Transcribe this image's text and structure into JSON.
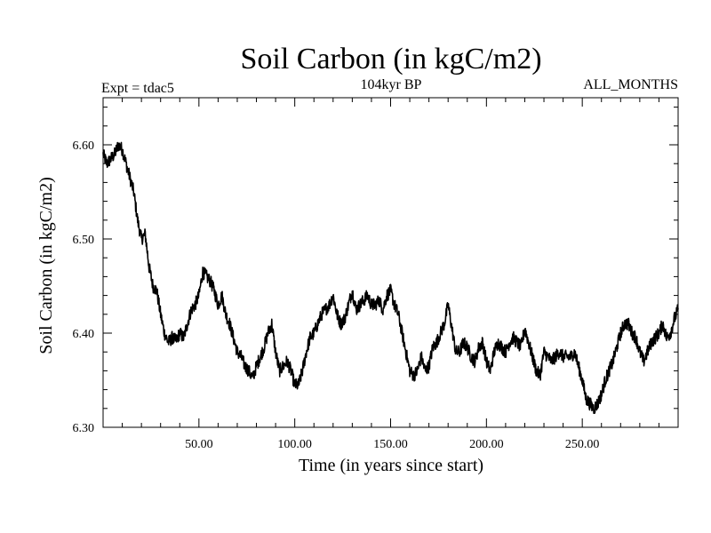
{
  "chart_data": {
    "type": "line",
    "title": "Soil Carbon (in kgC/m2)",
    "subtitle_left": "Expt = tdac5",
    "subtitle_center": "104kyr BP",
    "subtitle_right": "ALL_MONTHS",
    "xlabel": "Time (in years since start)",
    "ylabel": "Soil Carbon (in kgC/m2)",
    "xlim": [
      0,
      300
    ],
    "ylim": [
      6.3,
      6.65
    ],
    "x_ticks": [
      {
        "value": 50,
        "label": "50.00"
      },
      {
        "value": 100,
        "label": "100.00"
      },
      {
        "value": 150,
        "label": "150.00"
      },
      {
        "value": 200,
        "label": "200.00"
      },
      {
        "value": 250,
        "label": "250.00"
      }
    ],
    "y_ticks": [
      {
        "value": 6.3,
        "label": "6.30"
      },
      {
        "value": 6.4,
        "label": "6.40"
      },
      {
        "value": 6.5,
        "label": "6.50"
      },
      {
        "value": 6.6,
        "label": "6.60"
      }
    ],
    "series": [
      {
        "name": "Soil Carbon",
        "color": "#000000",
        "noise_amplitude": 0.007,
        "x": [
          0,
          2,
          4,
          6,
          8,
          10,
          12,
          14,
          16,
          18,
          20,
          22,
          24,
          26,
          28,
          30,
          32,
          34,
          36,
          38,
          40,
          42,
          44,
          46,
          48,
          50,
          52,
          54,
          56,
          58,
          60,
          62,
          64,
          66,
          68,
          70,
          72,
          74,
          76,
          78,
          80,
          82,
          84,
          86,
          88,
          90,
          92,
          94,
          96,
          98,
          100,
          102,
          104,
          106,
          108,
          110,
          112,
          114,
          116,
          118,
          120,
          122,
          124,
          126,
          128,
          130,
          132,
          134,
          136,
          138,
          140,
          142,
          144,
          146,
          148,
          150,
          152,
          154,
          156,
          158,
          160,
          162,
          164,
          166,
          168,
          170,
          172,
          174,
          176,
          178,
          180,
          182,
          184,
          186,
          188,
          190,
          192,
          194,
          196,
          198,
          200,
          202,
          204,
          206,
          208,
          210,
          212,
          214,
          216,
          218,
          220,
          222,
          224,
          226,
          228,
          230,
          232,
          234,
          236,
          238,
          240,
          242,
          244,
          246,
          248,
          250,
          252,
          254,
          256,
          258,
          260,
          262,
          264,
          266,
          268,
          270,
          272,
          274,
          276,
          278,
          280,
          282,
          284,
          286,
          288,
          290,
          292,
          294,
          296,
          298,
          300
        ],
        "y": [
          6.59,
          6.58,
          6.585,
          6.59,
          6.6,
          6.595,
          6.58,
          6.565,
          6.55,
          6.52,
          6.5,
          6.505,
          6.47,
          6.45,
          6.445,
          6.42,
          6.4,
          6.39,
          6.395,
          6.392,
          6.4,
          6.395,
          6.41,
          6.425,
          6.43,
          6.44,
          6.465,
          6.46,
          6.455,
          6.445,
          6.43,
          6.44,
          6.42,
          6.41,
          6.395,
          6.38,
          6.375,
          6.365,
          6.36,
          6.352,
          6.365,
          6.375,
          6.385,
          6.4,
          6.41,
          6.38,
          6.36,
          6.365,
          6.37,
          6.36,
          6.345,
          6.345,
          6.36,
          6.38,
          6.395,
          6.4,
          6.41,
          6.42,
          6.425,
          6.43,
          6.44,
          6.42,
          6.41,
          6.415,
          6.43,
          6.445,
          6.425,
          6.43,
          6.435,
          6.44,
          6.43,
          6.43,
          6.435,
          6.425,
          6.44,
          6.445,
          6.43,
          6.42,
          6.4,
          6.38,
          6.36,
          6.355,
          6.36,
          6.375,
          6.36,
          6.365,
          6.385,
          6.39,
          6.4,
          6.41,
          6.43,
          6.405,
          6.38,
          6.38,
          6.39,
          6.385,
          6.375,
          6.37,
          6.385,
          6.39,
          6.37,
          6.36,
          6.38,
          6.39,
          6.385,
          6.38,
          6.39,
          6.395,
          6.39,
          6.385,
          6.405,
          6.39,
          6.375,
          6.36,
          6.355,
          6.38,
          6.375,
          6.37,
          6.375,
          6.38,
          6.375,
          6.375,
          6.375,
          6.38,
          6.365,
          6.35,
          6.33,
          6.325,
          6.32,
          6.325,
          6.335,
          6.35,
          6.36,
          6.37,
          6.385,
          6.4,
          6.41,
          6.41,
          6.4,
          6.395,
          6.38,
          6.37,
          6.38,
          6.39,
          6.395,
          6.4,
          6.41,
          6.395,
          6.4,
          6.415,
          6.425
        ]
      }
    ]
  }
}
